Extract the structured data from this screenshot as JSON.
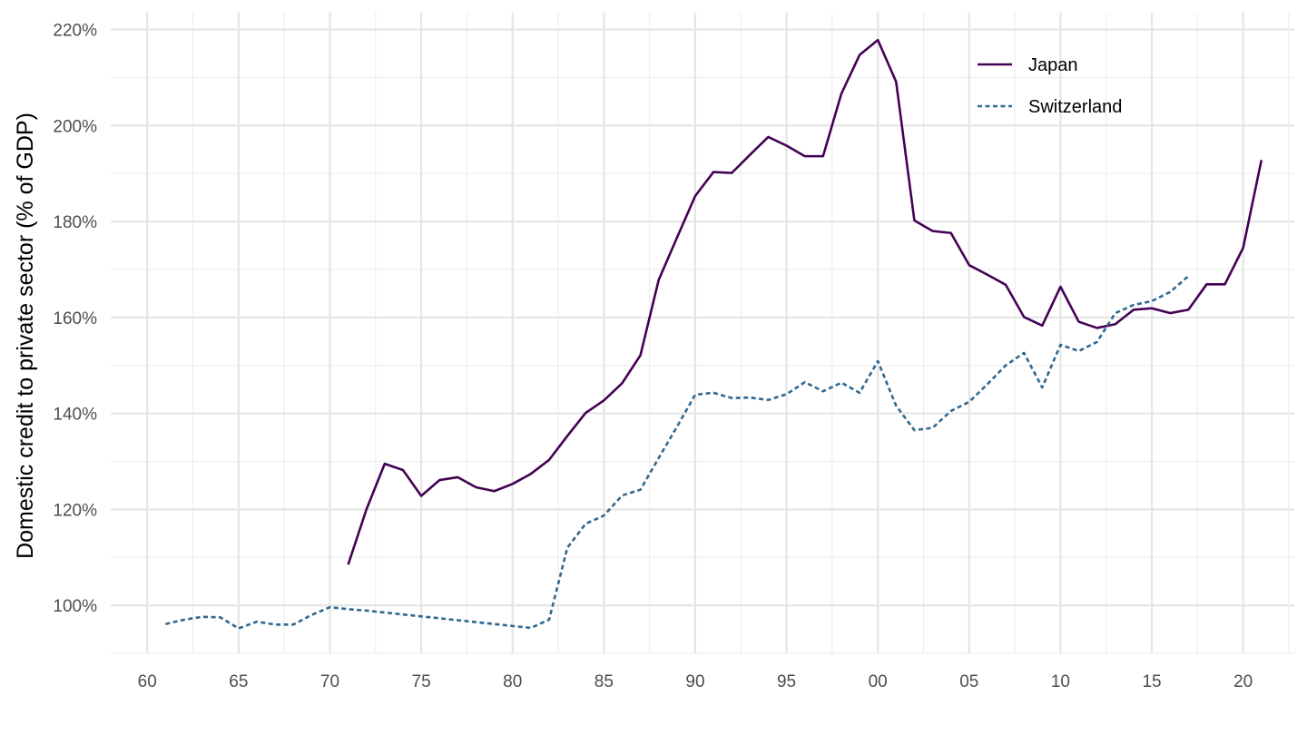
{
  "chart_data": {
    "type": "line",
    "xlabel": "",
    "ylabel": "Domestic credit to private sector (% of GDP)",
    "xlim": [
      1958,
      2022.8
    ],
    "ylim": [
      90,
      223.5
    ],
    "x_ticks": [
      1960,
      1965,
      1970,
      1975,
      1980,
      1985,
      1990,
      1995,
      2000,
      2005,
      2010,
      2015,
      2020
    ],
    "x_tick_labels": [
      "60",
      "65",
      "70",
      "75",
      "80",
      "85",
      "90",
      "95",
      "00",
      "05",
      "10",
      "15",
      "20"
    ],
    "y_ticks": [
      100,
      120,
      140,
      160,
      180,
      200,
      220
    ],
    "y_tick_labels": [
      "100%",
      "120%",
      "140%",
      "160%",
      "180%",
      "200%",
      "220%"
    ],
    "grid": true,
    "legend_position": "top-right",
    "series": [
      {
        "name": "Japan",
        "color": "#440154",
        "dash": "solid",
        "x": [
          1971,
          1972,
          1973,
          1974,
          1975,
          1976,
          1977,
          1978,
          1979,
          1980,
          1981,
          1982,
          1983,
          1984,
          1985,
          1986,
          1987,
          1988,
          1989,
          1990,
          1991,
          1992,
          1993,
          1994,
          1995,
          1996,
          1997,
          1998,
          1999,
          2000,
          2001,
          2002,
          2003,
          2004,
          2005,
          2006,
          2007,
          2008,
          2009,
          2010,
          2011,
          2012,
          2013,
          2014,
          2015,
          2016,
          2017,
          2018,
          2019,
          2020,
          2021
        ],
        "values": [
          108.5,
          120,
          129.5,
          128.2,
          122.8,
          126.1,
          126.7,
          124.6,
          123.8,
          125.3,
          127.4,
          130.3,
          135.3,
          140.1,
          142.7,
          146.3,
          152.1,
          167.8,
          176.6,
          185.3,
          190.3,
          190.1,
          193.9,
          197.6,
          195.8,
          193.6,
          193.6,
          206.6,
          214.7,
          217.8,
          209.1,
          180.2,
          178,
          177.6,
          170.9,
          168.9,
          166.8,
          160.1,
          158.3,
          166.4,
          159.1,
          157.8,
          158.6,
          161.6,
          161.9,
          160.9,
          161.6,
          166.9,
          166.9,
          174.5,
          192.8
        ]
      },
      {
        "name": "Switzerland",
        "color": "#31688e",
        "dash": "dotted",
        "x": [
          1961,
          1962,
          1963,
          1964,
          1965,
          1966,
          1967,
          1968,
          1969,
          1970,
          1971,
          1972,
          1973,
          1974,
          1975,
          1976,
          1977,
          1978,
          1979,
          1980,
          1981,
          1982,
          1983,
          1984,
          1985,
          1986,
          1987,
          1988,
          1989,
          1990,
          1991,
          1992,
          1993,
          1994,
          1995,
          1996,
          1997,
          1998,
          1999,
          2000,
          2001,
          2002,
          2003,
          2004,
          2005,
          2006,
          2007,
          2008,
          2009,
          2010,
          2011,
          2012,
          2013,
          2014,
          2015,
          2016,
          2017
        ],
        "values": [
          96.1,
          97,
          97.6,
          97.5,
          95.2,
          96.6,
          96,
          96,
          98,
          99.6,
          99.2,
          98.9,
          98.5,
          98.1,
          97.7,
          97.3,
          96.9,
          96.5,
          96.1,
          95.7,
          95.3,
          97,
          112,
          117,
          118.7,
          122.9,
          124.1,
          130.7,
          137.2,
          143.9,
          144.3,
          143.2,
          143.3,
          142.8,
          144,
          146.5,
          144.6,
          146.4,
          144.3,
          150.9,
          141.6,
          136.5,
          137,
          140.5,
          142.4,
          146.1,
          150,
          152.6,
          145.4,
          154.3,
          153,
          154.9,
          160.9,
          162.6,
          163.4,
          165.3,
          168.6
        ]
      }
    ]
  }
}
